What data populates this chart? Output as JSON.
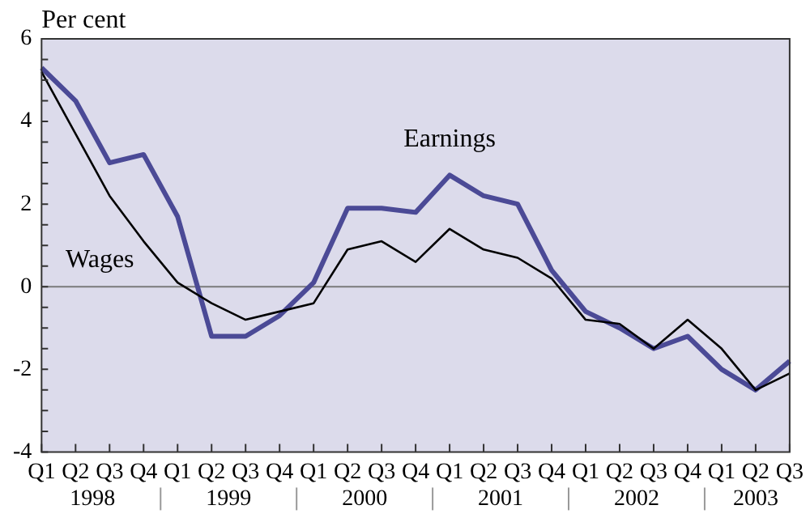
{
  "chart_data": {
    "type": "line",
    "ylabel": "Per cent",
    "categories": [
      "Q1",
      "Q2",
      "Q3",
      "Q4",
      "Q1",
      "Q2",
      "Q3",
      "Q4",
      "Q1",
      "Q2",
      "Q3",
      "Q4",
      "Q1",
      "Q2",
      "Q3",
      "Q4",
      "Q1",
      "Q2",
      "Q3",
      "Q4",
      "Q1",
      "Q2",
      "Q3"
    ],
    "series": [
      {
        "name": "Earnings",
        "color": "#4b4a96",
        "values": [
          5.3,
          4.5,
          3.0,
          3.2,
          1.7,
          -1.2,
          -1.2,
          -0.7,
          0.1,
          1.9,
          1.9,
          1.8,
          2.7,
          2.2,
          2.0,
          0.4,
          -0.6,
          -1.0,
          -1.5,
          -1.2,
          -2.0,
          -2.5,
          -1.8
        ]
      },
      {
        "name": "Wages",
        "color": "#000000",
        "values": [
          5.2,
          3.7,
          2.2,
          1.1,
          0.1,
          -0.4,
          -0.8,
          -0.6,
          -0.4,
          0.9,
          1.1,
          0.6,
          1.4,
          0.9,
          0.7,
          0.2,
          -0.8,
          -0.9,
          -1.5,
          -0.8,
          -1.5,
          -2.5,
          -2.1
        ]
      }
    ],
    "ylim": [
      -4,
      6
    ],
    "yticks": [
      -4,
      -2,
      0,
      2,
      4,
      6
    ],
    "grid": false,
    "legend": false,
    "marker": "none",
    "line_style": "solid",
    "ref_lines": [
      {
        "axis": "y",
        "value": 0,
        "color": "#7a7a7a"
      }
    ],
    "annotations": [
      "1998",
      "1999",
      "2000",
      "2001",
      "2002",
      "2003"
    ]
  }
}
